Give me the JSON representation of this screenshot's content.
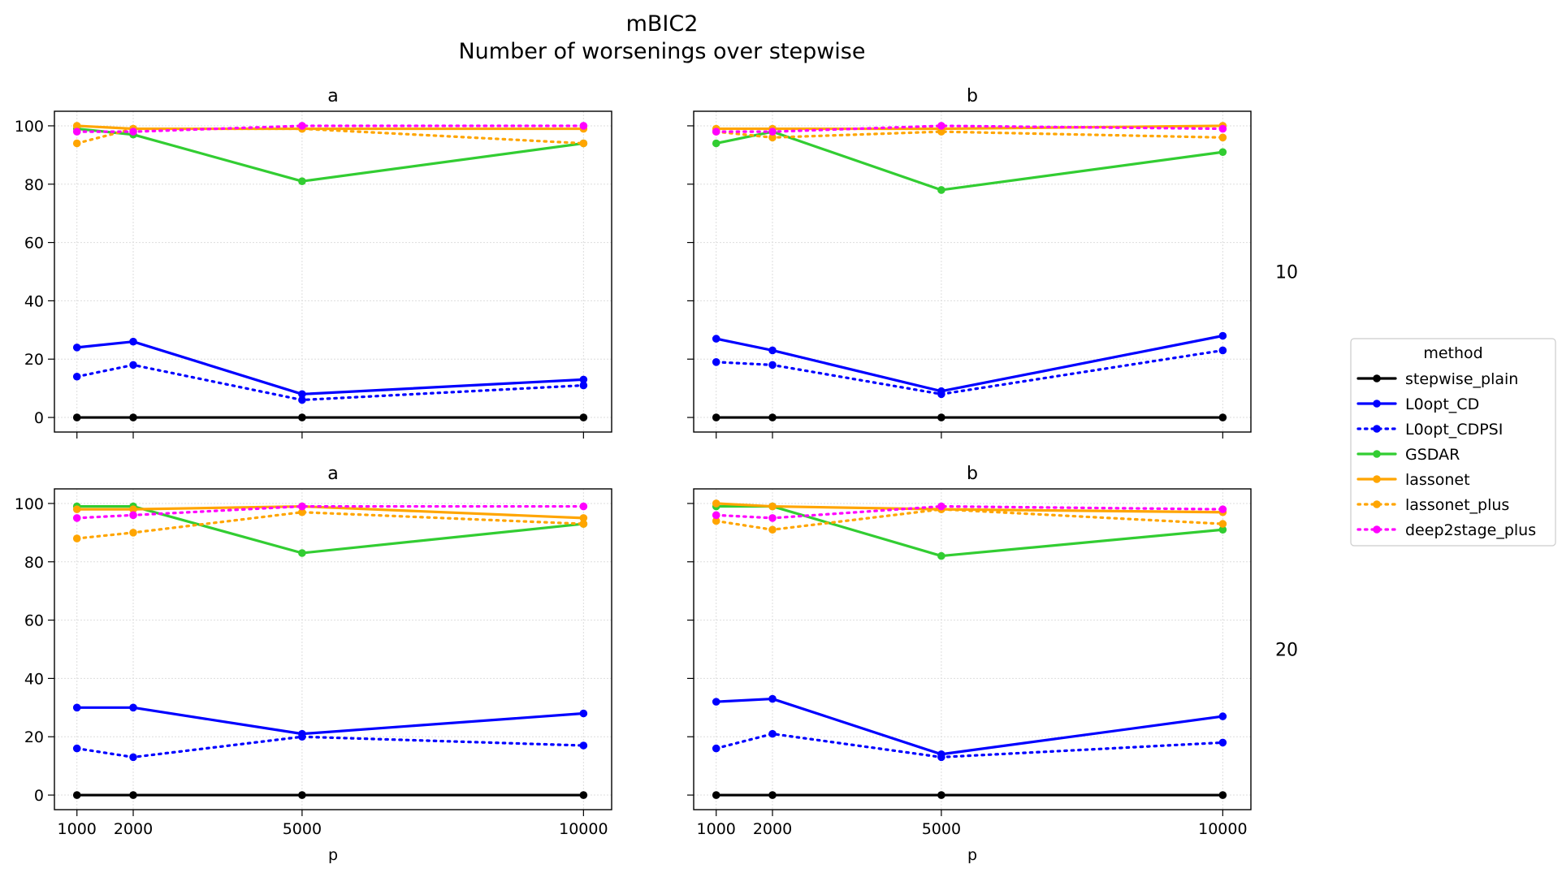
{
  "figure": {
    "title_line1": "mBIC2",
    "title_line2": "Number of worsenings over stepwise"
  },
  "legend": {
    "title": "method",
    "location": "right"
  },
  "chart_data": [
    {
      "type": "line",
      "title": "a",
      "row_label": "10",
      "xlabel": "",
      "ylabel": "",
      "x": [
        1000,
        2000,
        5000,
        10000
      ],
      "xlim": [
        600,
        10500
      ],
      "ylim": [
        -5,
        105
      ],
      "xticks": [
        1000,
        2000,
        5000,
        10000
      ],
      "yticks": [
        0,
        20,
        40,
        60,
        80,
        100
      ],
      "grid": true,
      "series": [
        {
          "name": "stepwise_plain",
          "values": [
            0,
            0,
            0,
            0
          ]
        },
        {
          "name": "L0opt_CD",
          "values": [
            24,
            26,
            8,
            13
          ]
        },
        {
          "name": "L0opt_CDPSI",
          "values": [
            14,
            18,
            6,
            11
          ]
        },
        {
          "name": "GSDAR",
          "values": [
            99,
            97,
            81,
            94
          ]
        },
        {
          "name": "lassonet",
          "values": [
            100,
            99,
            99,
            99
          ]
        },
        {
          "name": "lassonet_plus",
          "values": [
            94,
            99,
            99,
            94
          ]
        },
        {
          "name": "deep2stage_plus",
          "values": [
            98,
            98,
            100,
            100
          ]
        }
      ]
    },
    {
      "type": "line",
      "title": "b",
      "row_label": "10",
      "xlabel": "",
      "ylabel": "",
      "x": [
        1000,
        2000,
        5000,
        10000
      ],
      "xlim": [
        600,
        10500
      ],
      "ylim": [
        -5,
        105
      ],
      "xticks": [
        1000,
        2000,
        5000,
        10000
      ],
      "yticks": [
        0,
        20,
        40,
        60,
        80,
        100
      ],
      "grid": true,
      "series": [
        {
          "name": "stepwise_plain",
          "values": [
            0,
            0,
            0,
            0
          ]
        },
        {
          "name": "L0opt_CD",
          "values": [
            27,
            23,
            9,
            28
          ]
        },
        {
          "name": "L0opt_CDPSI",
          "values": [
            19,
            18,
            8,
            23
          ]
        },
        {
          "name": "GSDAR",
          "values": [
            94,
            98,
            78,
            91
          ]
        },
        {
          "name": "lassonet",
          "values": [
            99,
            99,
            99,
            100
          ]
        },
        {
          "name": "lassonet_plus",
          "values": [
            98,
            96,
            98,
            96
          ]
        },
        {
          "name": "deep2stage_plus",
          "values": [
            98,
            98,
            100,
            99
          ]
        }
      ]
    },
    {
      "type": "line",
      "title": "a",
      "row_label": "20",
      "xlabel": "p",
      "ylabel": "",
      "x": [
        1000,
        2000,
        5000,
        10000
      ],
      "xlim": [
        600,
        10500
      ],
      "ylim": [
        -5,
        105
      ],
      "xticks": [
        1000,
        2000,
        5000,
        10000
      ],
      "yticks": [
        0,
        20,
        40,
        60,
        80,
        100
      ],
      "grid": true,
      "series": [
        {
          "name": "stepwise_plain",
          "values": [
            0,
            0,
            0,
            0
          ]
        },
        {
          "name": "L0opt_CD",
          "values": [
            30,
            30,
            21,
            28
          ]
        },
        {
          "name": "L0opt_CDPSI",
          "values": [
            16,
            13,
            20,
            17
          ]
        },
        {
          "name": "GSDAR",
          "values": [
            99,
            99,
            83,
            93
          ]
        },
        {
          "name": "lassonet",
          "values": [
            98,
            98,
            99,
            95
          ]
        },
        {
          "name": "lassonet_plus",
          "values": [
            88,
            90,
            97,
            93
          ]
        },
        {
          "name": "deep2stage_plus",
          "values": [
            95,
            96,
            99,
            99
          ]
        }
      ]
    },
    {
      "type": "line",
      "title": "b",
      "row_label": "20",
      "xlabel": "p",
      "ylabel": "",
      "x": [
        1000,
        2000,
        5000,
        10000
      ],
      "xlim": [
        600,
        10500
      ],
      "ylim": [
        -5,
        105
      ],
      "xticks": [
        1000,
        2000,
        5000,
        10000
      ],
      "yticks": [
        0,
        20,
        40,
        60,
        80,
        100
      ],
      "grid": true,
      "series": [
        {
          "name": "stepwise_plain",
          "values": [
            0,
            0,
            0,
            0
          ]
        },
        {
          "name": "L0opt_CD",
          "values": [
            32,
            33,
            14,
            27
          ]
        },
        {
          "name": "L0opt_CDPSI",
          "values": [
            16,
            21,
            13,
            18
          ]
        },
        {
          "name": "GSDAR",
          "values": [
            99,
            99,
            82,
            91
          ]
        },
        {
          "name": "lassonet",
          "values": [
            100,
            99,
            98,
            97
          ]
        },
        {
          "name": "lassonet_plus",
          "values": [
            94,
            91,
            98,
            93
          ]
        },
        {
          "name": "deep2stage_plus",
          "values": [
            96,
            95,
            99,
            98
          ]
        }
      ]
    }
  ],
  "series_styles": [
    {
      "name": "stepwise_plain",
      "color": "#000000",
      "dash": "solid"
    },
    {
      "name": "L0opt_CD",
      "color": "#0000ff",
      "dash": "solid"
    },
    {
      "name": "L0opt_CDPSI",
      "color": "#0000ff",
      "dash": "dotted"
    },
    {
      "name": "GSDAR",
      "color": "#32cd32",
      "dash": "solid"
    },
    {
      "name": "lassonet",
      "color": "#ffa500",
      "dash": "solid"
    },
    {
      "name": "lassonet_plus",
      "color": "#ffa500",
      "dash": "dotted"
    },
    {
      "name": "deep2stage_plus",
      "color": "#ff00ff",
      "dash": "dotted"
    }
  ]
}
